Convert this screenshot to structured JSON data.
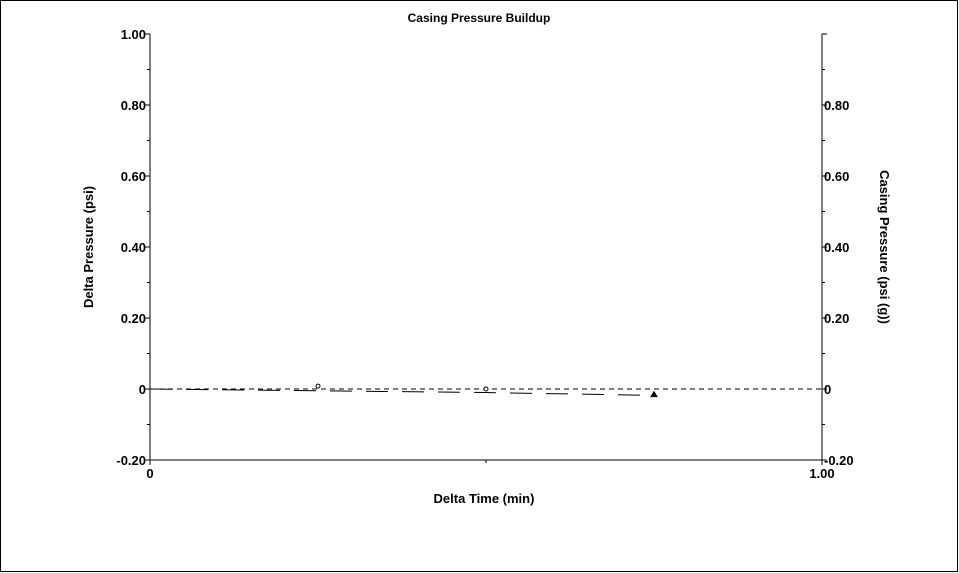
{
  "chart_data": {
    "type": "line",
    "title": "Casing Pressure Buildup",
    "xlabel": "Delta Time (min)",
    "ylabel": "Delta Pressure (psi)",
    "y2label": "Casing Pressure (psi (g))",
    "xlim": [
      0,
      1.0
    ],
    "ylim": [
      -0.2,
      1.0
    ],
    "y2lim": [
      -0.2,
      1.0
    ],
    "x_ticks": [
      0,
      1.0
    ],
    "x_tick_labels": [
      "0",
      "1.00"
    ],
    "y_ticks": [
      -0.2,
      0,
      0.2,
      0.4,
      0.6,
      0.8,
      1.0
    ],
    "y_tick_labels": [
      "-0.20",
      "0",
      "0.20",
      "0.40",
      "0.60",
      "0.80",
      "1.00"
    ],
    "y2_ticks": [
      -0.2,
      0,
      0.2,
      0.4,
      0.6,
      0.8
    ],
    "y2_tick_labels": [
      "-0.20",
      "0",
      "0.20",
      "0.40",
      "0.60",
      "0.80"
    ],
    "grid": false,
    "series": [
      {
        "name": "",
        "style": "dashed",
        "color": "#000000",
        "x": [
          0,
          1.0
        ],
        "values": [
          0,
          0
        ]
      },
      {
        "name": "",
        "style": "long-dash",
        "color": "#000000",
        "x": [
          0,
          0.25,
          0.5,
          0.75
        ],
        "values": [
          0,
          -0.005,
          -0.01,
          -0.018
        ]
      }
    ],
    "markers": [
      {
        "x": 0.25,
        "y": 0.008,
        "shape": "open-circle"
      },
      {
        "x": 0.5,
        "y": 0.0,
        "shape": "open-circle"
      },
      {
        "x": 0.75,
        "y": -0.016,
        "shape": "filled-triangle"
      }
    ]
  }
}
